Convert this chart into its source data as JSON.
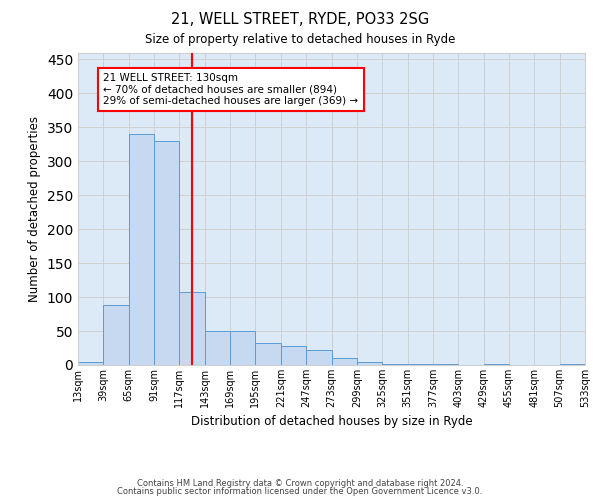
{
  "title1": "21, WELL STREET, RYDE, PO33 2SG",
  "title2": "Size of property relative to detached houses in Ryde",
  "xlabel": "Distribution of detached houses by size in Ryde",
  "ylabel": "Number of detached properties",
  "bar_color": "#c6d9f0",
  "bar_edge_color": "#5b9bd5",
  "grid_color": "#d0d0d0",
  "background_color": "#dce9f7",
  "property_line_x": 130,
  "annotation_text": "21 WELL STREET: 130sqm\n← 70% of detached houses are smaller (894)\n29% of semi-detached houses are larger (369) →",
  "annotation_box_color": "white",
  "annotation_box_edge_color": "red",
  "footer1": "Contains HM Land Registry data © Crown copyright and database right 2024.",
  "footer2": "Contains public sector information licensed under the Open Government Licence v3.0.",
  "bins": [
    13,
    39,
    65,
    91,
    117,
    143,
    169,
    195,
    221,
    247,
    273,
    299,
    325,
    351,
    377,
    403,
    429,
    455,
    481,
    507,
    533
  ],
  "bin_labels": [
    "13sqm",
    "39sqm",
    "65sqm",
    "91sqm",
    "117sqm",
    "143sqm",
    "169sqm",
    "195sqm",
    "221sqm",
    "247sqm",
    "273sqm",
    "299sqm",
    "325sqm",
    "351sqm",
    "377sqm",
    "403sqm",
    "429sqm",
    "455sqm",
    "481sqm",
    "507sqm",
    "533sqm"
  ],
  "counts": [
    5,
    88,
    340,
    330,
    108,
    50,
    50,
    32,
    28,
    22,
    10,
    5,
    2,
    2,
    1,
    0,
    1,
    0,
    0,
    1
  ],
  "ylim": [
    0,
    460
  ],
  "yticks": [
    0,
    50,
    100,
    150,
    200,
    250,
    300,
    350,
    400,
    450
  ]
}
